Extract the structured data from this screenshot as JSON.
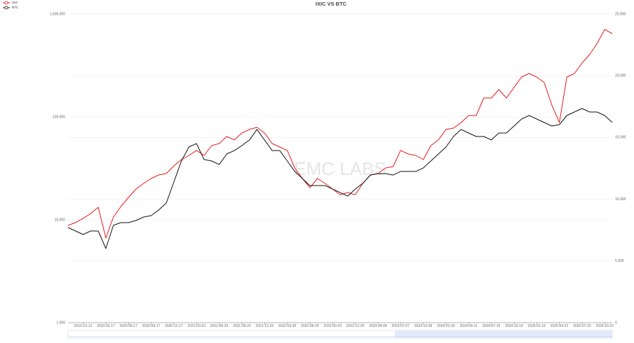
{
  "chart_data": {
    "type": "line",
    "title": "IXIC VS BTC",
    "watermark": "EMC LABS",
    "categories": [
      null,
      null,
      "2019-12-12",
      null,
      null,
      "2020-03-17",
      null,
      null,
      "2020-06-17",
      null,
      null,
      "2020-09-17",
      null,
      null,
      "2020-12-17",
      null,
      null,
      "2021-03-23",
      null,
      null,
      "2021-06-23",
      null,
      null,
      "2021-09-23",
      null,
      null,
      "2021-12-23",
      null,
      null,
      "2022-03-30",
      null,
      null,
      "2022-06-29",
      null,
      null,
      "2022-09-29",
      null,
      null,
      "2022-12-30",
      null,
      null,
      "2023-04-04",
      null,
      null,
      "2023-07-07",
      null,
      null,
      "2023-10-06",
      null,
      null,
      "2024-01-09",
      null,
      null,
      "2024-04-11",
      null,
      null,
      "2024-07-15",
      null,
      null,
      "2024-10-14",
      null,
      null,
      "2025-01-15",
      null,
      null,
      "2025-04-21",
      null,
      null,
      "2025-07-23",
      null,
      null,
      "2025-10-22",
      null
    ],
    "series": [
      {
        "name": "IXIC",
        "color": "#e8191b",
        "axis": "y2",
        "values": [
          7880,
          8110,
          8450,
          8840,
          9350,
          6860,
          8560,
          9410,
          10150,
          10830,
          11280,
          11680,
          11960,
          12080,
          12700,
          13210,
          13550,
          13950,
          13550,
          14340,
          14510,
          15080,
          14800,
          15360,
          15650,
          15820,
          15360,
          14510,
          14230,
          13950,
          12530,
          11680,
          10940,
          11680,
          11280,
          10830,
          10370,
          10540,
          10370,
          11280,
          11960,
          12080,
          12530,
          12640,
          13950,
          13660,
          13550,
          13210,
          14340,
          14800,
          15650,
          15760,
          16210,
          16780,
          16780,
          18200,
          18200,
          18880,
          18200,
          19050,
          19900,
          20180,
          19900,
          19450,
          17630,
          16210,
          19900,
          20180,
          21030,
          21710,
          22620,
          23750,
          23410
        ]
      },
      {
        "name": "BTC",
        "color": "#111111",
        "values": [
          8420,
          7780,
          7200,
          7780,
          7780,
          5260,
          8830,
          9390,
          9390,
          9840,
          10650,
          10990,
          12450,
          14560,
          23300,
          37300,
          51000,
          55100,
          38500,
          37300,
          34500,
          43600,
          47100,
          52600,
          59700,
          75500,
          59700,
          47100,
          47100,
          37300,
          29500,
          25200,
          21500,
          21500,
          21500,
          19900,
          18400,
          17000,
          19900,
          22600,
          27200,
          28100,
          28100,
          27200,
          29500,
          29500,
          29500,
          31900,
          37300,
          43600,
          51000,
          64500,
          75500,
          69800,
          64500,
          64500,
          59700,
          69800,
          69800,
          81600,
          95400,
          103200,
          95400,
          88200,
          81600,
          84200,
          103200,
          111600,
          120700,
          111600,
          111600,
          103200,
          88200
        ]
      }
    ],
    "ylim": [
      1000,
      1000000
    ],
    "log_scale": true,
    "yticks": [
      {
        "value": 1000,
        "label": "1,000"
      },
      {
        "value": 10000,
        "label": "10,000"
      },
      {
        "value": 100000,
        "label": "100,000"
      },
      {
        "value": 1000000,
        "label": "1,000,000"
      }
    ],
    "y2lim": [
      0,
      25000
    ],
    "y2ticks": [
      0,
      {
        "value": 5000,
        "label": "5,000"
      },
      {
        "value": 10000,
        "label": "10,000"
      },
      {
        "value": 15000,
        "label": "15,000"
      },
      {
        "value": 20000,
        "label": "20,000"
      },
      {
        "value": 25000,
        "label": "25,000"
      }
    ],
    "grid": true,
    "legend": "top-left"
  }
}
